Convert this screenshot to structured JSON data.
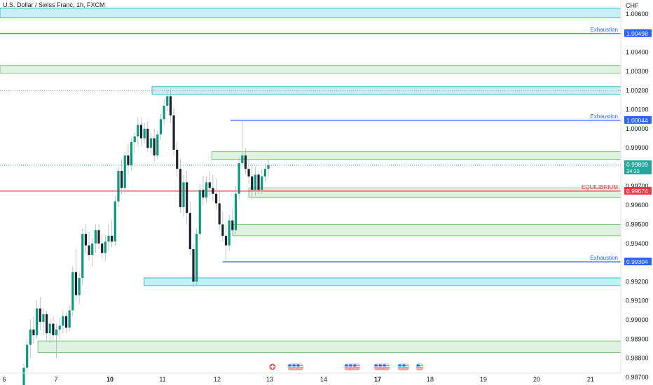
{
  "chart_data": {
    "type": "candlestick",
    "title": "U.S. Dollar / Swiss Franc, 1h, FXCM",
    "currency": "CHF",
    "ylim": [
      0.9866,
      1.0064
    ],
    "y_ticks": [
      1.006,
      1.005,
      1.004,
      1.003,
      1.002,
      1.001,
      1.0,
      0.999,
      0.998,
      0.997,
      0.996,
      0.995,
      0.994,
      0.993,
      0.992,
      0.991,
      0.99,
      0.989,
      0.988,
      0.987
    ],
    "y_tick_labels": [
      "1.00600",
      "1.00500",
      "1.00400",
      "1.00300",
      "1.00200",
      "1.00100",
      "1.00000",
      "0.99900",
      "0.99800",
      "0.99700",
      "0.99600",
      "0.99500",
      "0.99400",
      "0.99300",
      "0.99200",
      "0.99100",
      "0.99000",
      "0.98900",
      "0.98800",
      "0.98700"
    ],
    "x_ticks": [
      {
        "label": "6",
        "bold": false,
        "day": 6
      },
      {
        "label": "7",
        "bold": false,
        "day": 7
      },
      {
        "label": "10",
        "bold": true,
        "day": 10
      },
      {
        "label": "11",
        "bold": false,
        "day": 11
      },
      {
        "label": "12",
        "bold": false,
        "day": 12
      },
      {
        "label": "13",
        "bold": false,
        "day": 13
      },
      {
        "label": "14",
        "bold": false,
        "day": 14
      },
      {
        "label": "17",
        "bold": true,
        "day": 17
      },
      {
        "label": "18",
        "bold": false,
        "day": 18
      },
      {
        "label": "19",
        "bold": false,
        "day": 19
      },
      {
        "label": "20",
        "bold": false,
        "day": 20
      },
      {
        "label": "21",
        "bold": false,
        "day": 21
      }
    ],
    "current_price": {
      "label": "0.99809",
      "countdown": "34:33",
      "value": 0.99809,
      "color": "#26a69a"
    },
    "levels": [
      {
        "value": 1.00498,
        "label": "1.00498",
        "annotation": "Exhaustion",
        "color": "#2962ff",
        "start_day": 0
      },
      {
        "value": 1.00044,
        "label": "1.00044",
        "annotation": "Exhaustion",
        "color": "#2962ff",
        "start_day": 12.25
      },
      {
        "value": 0.99674,
        "label": "0.99674",
        "annotation": "EQUILIBRIUM",
        "color": "#f23645",
        "start_day": 0
      },
      {
        "value": 0.99304,
        "label": "0.99304",
        "annotation": "Exhaustion",
        "color": "#2962ff",
        "start_day": 12.1
      }
    ],
    "zones": [
      {
        "high": 1.0063,
        "low": 1.0058,
        "kind": "supply",
        "start_day": 0
      },
      {
        "high": 1.0033,
        "low": 1.0029,
        "kind": "demand",
        "start_day": 0
      },
      {
        "high": 1.0022,
        "low": 1.0018,
        "kind": "supply",
        "start_day": 10.8
      },
      {
        "high": 0.9988,
        "low": 0.9984,
        "kind": "demand",
        "start_day": 11.9
      },
      {
        "high": 0.9969,
        "low": 0.9964,
        "kind": "demand",
        "start_day": 12.6
      },
      {
        "high": 0.995,
        "low": 0.9944,
        "kind": "demand",
        "start_day": 12.3
      },
      {
        "high": 0.9922,
        "low": 0.9918,
        "kind": "supply",
        "start_day": 10.65
      },
      {
        "high": 0.9889,
        "low": 0.9883,
        "kind": "demand",
        "start_day": 6.65
      }
    ],
    "dotted_levels": [
      1.002,
      0.99809
    ],
    "candles": [
      [
        0.9864,
        0.9877,
        0.9862,
        0.9875
      ],
      [
        0.9875,
        0.989,
        0.9873,
        0.9887
      ],
      [
        0.9887,
        0.99,
        0.988,
        0.9895
      ],
      [
        0.9895,
        0.9902,
        0.9888,
        0.9892
      ],
      [
        0.9892,
        0.991,
        0.989,
        0.9906
      ],
      [
        0.9906,
        0.9912,
        0.9895,
        0.9899
      ],
      [
        0.9899,
        0.9906,
        0.9892,
        0.9903
      ],
      [
        0.9903,
        0.9905,
        0.9889,
        0.9893
      ],
      [
        0.9893,
        0.9901,
        0.9888,
        0.9898
      ],
      [
        0.9898,
        0.9902,
        0.9889,
        0.9892
      ],
      [
        0.9892,
        0.9898,
        0.988,
        0.9895
      ],
      [
        0.9895,
        0.9901,
        0.989,
        0.9897
      ],
      [
        0.9897,
        0.9905,
        0.9893,
        0.9902
      ],
      [
        0.9902,
        0.9904,
        0.9893,
        0.9896
      ],
      [
        0.9896,
        0.9908,
        0.9894,
        0.9905
      ],
      [
        0.9905,
        0.9928,
        0.9902,
        0.9925
      ],
      [
        0.9925,
        0.9937,
        0.991,
        0.9913
      ],
      [
        0.9913,
        0.9925,
        0.9908,
        0.9922
      ],
      [
        0.9922,
        0.9948,
        0.9918,
        0.9945
      ],
      [
        0.9945,
        0.995,
        0.9935,
        0.9939
      ],
      [
        0.9939,
        0.9946,
        0.9931,
        0.9934
      ],
      [
        0.9934,
        0.9943,
        0.9928,
        0.994
      ],
      [
        0.994,
        0.995,
        0.9935,
        0.9947
      ],
      [
        0.9947,
        0.995,
        0.9937,
        0.994
      ],
      [
        0.994,
        0.9945,
        0.9932,
        0.9935
      ],
      [
        0.9935,
        0.9944,
        0.9931,
        0.9941
      ],
      [
        0.9941,
        0.995,
        0.9936,
        0.9944
      ],
      [
        0.9944,
        0.9952,
        0.9938,
        0.9941
      ],
      [
        0.9941,
        0.9965,
        0.9939,
        0.9962
      ],
      [
        0.9962,
        0.998,
        0.9959,
        0.9978
      ],
      [
        0.9978,
        0.9984,
        0.9966,
        0.9969
      ],
      [
        0.9969,
        0.9988,
        0.9966,
        0.9986
      ],
      [
        0.9986,
        0.9992,
        0.9976,
        0.9981
      ],
      [
        0.9981,
        0.9995,
        0.9978,
        0.9993
      ],
      [
        0.9993,
        0.9998,
        0.9987,
        0.9996
      ],
      [
        0.9996,
        1.0006,
        0.9991,
        1.0002
      ],
      [
        1.0002,
        1.0006,
        0.9991,
        0.9995
      ],
      [
        0.9995,
        1.0003,
        0.9992,
        1.0
      ],
      [
        1.0,
        1.0004,
        0.9988,
        0.999
      ],
      [
        0.999,
        0.9998,
        0.9987,
        0.9995
      ],
      [
        0.9995,
        1.0,
        0.9983,
        0.9986
      ],
      [
        0.9986,
        0.9999,
        0.9984,
        0.9997
      ],
      [
        0.9997,
        1.0008,
        0.9994,
        1.0005
      ],
      [
        1.0005,
        1.0015,
        1.0002,
        1.0012
      ],
      [
        1.0012,
        1.002,
        1.0009,
        1.0017
      ],
      [
        1.0017,
        1.0021,
        1.0003,
        1.0007
      ],
      [
        1.0007,
        1.0011,
        0.9986,
        0.9989
      ],
      [
        0.9989,
        0.9993,
        0.9975,
        0.9979
      ],
      [
        0.9979,
        0.9984,
        0.9956,
        0.9959
      ],
      [
        0.9959,
        0.9976,
        0.9954,
        0.9972
      ],
      [
        0.9972,
        0.9978,
        0.995,
        0.9956
      ],
      [
        0.9956,
        0.9962,
        0.9934,
        0.9937
      ],
      [
        0.9937,
        0.994,
        0.9917,
        0.992
      ],
      [
        0.992,
        0.9948,
        0.9918,
        0.9945
      ],
      [
        0.9945,
        0.9971,
        0.9942,
        0.9968
      ],
      [
        0.9968,
        0.9975,
        0.996,
        0.9964
      ],
      [
        0.9964,
        0.9975,
        0.9961,
        0.9972
      ],
      [
        0.9972,
        0.9978,
        0.9965,
        0.9969
      ],
      [
        0.9969,
        0.9976,
        0.9962,
        0.9966
      ],
      [
        0.9966,
        0.9974,
        0.9958,
        0.9961
      ],
      [
        0.9961,
        0.9968,
        0.9947,
        0.995
      ],
      [
        0.995,
        0.9957,
        0.9941,
        0.9944
      ],
      [
        0.9944,
        0.995,
        0.9931,
        0.9939
      ],
      [
        0.9939,
        0.9955,
        0.9936,
        0.9952
      ],
      [
        0.9952,
        0.9958,
        0.9944,
        0.9947
      ],
      [
        0.9947,
        0.997,
        0.9945,
        0.9966
      ],
      [
        0.9966,
        0.9985,
        0.9963,
        0.9982
      ],
      [
        0.9982,
        1.0004,
        0.998,
        0.9986
      ],
      [
        0.9986,
        0.999,
        0.9976,
        0.9979
      ],
      [
        0.9979,
        0.9984,
        0.9971,
        0.9975
      ],
      [
        0.9975,
        0.9982,
        0.9963,
        0.9968
      ],
      [
        0.9968,
        0.998,
        0.9965,
        0.9976
      ],
      [
        0.9976,
        0.9978,
        0.9966,
        0.9968
      ],
      [
        0.9968,
        0.9979,
        0.9966,
        0.9975
      ],
      [
        0.9975,
        0.9982,
        0.9972,
        0.9979
      ],
      [
        0.9979,
        0.9984,
        0.9975,
        0.9981
      ]
    ],
    "event_icons": [
      {
        "day": 13.05,
        "flags": [
          "ch"
        ]
      },
      {
        "day": 13.4,
        "flags": [
          "us",
          "us",
          "us"
        ]
      },
      {
        "day": 14.45,
        "flags": [
          "us",
          "us",
          "us"
        ]
      },
      {
        "day": 16.4,
        "flags": [
          "us",
          "us",
          "us"
        ]
      },
      {
        "day": 17.45,
        "flags": [
          "us",
          "us"
        ]
      },
      {
        "day": 17.8,
        "flags": [
          "us"
        ]
      }
    ]
  }
}
